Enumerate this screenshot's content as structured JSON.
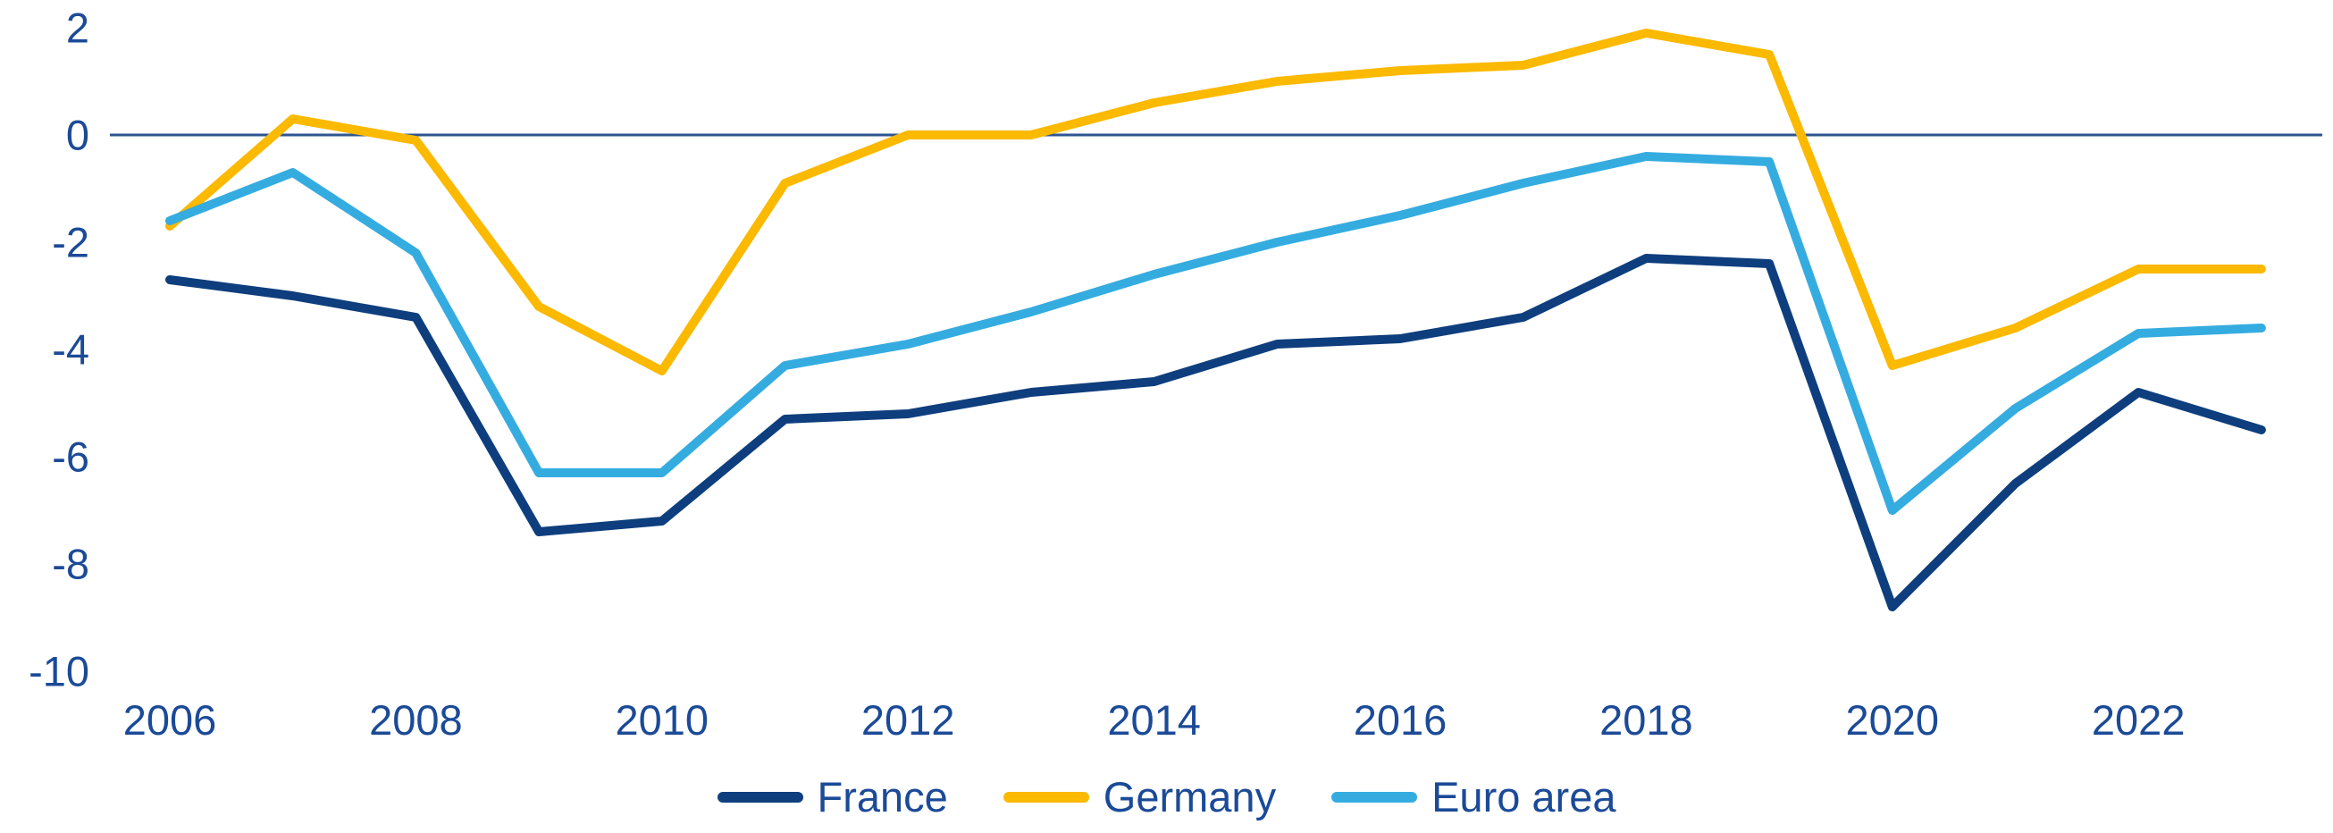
{
  "chart_data": {
    "type": "line",
    "title": "",
    "xlabel": "",
    "ylabel": "",
    "x": [
      2006,
      2007,
      2008,
      2009,
      2010,
      2011,
      2012,
      2013,
      2014,
      2015,
      2016,
      2017,
      2018,
      2019,
      2020,
      2021,
      2022,
      2023
    ],
    "x_ticks": [
      2006,
      2008,
      2010,
      2012,
      2014,
      2016,
      2018,
      2020,
      2022
    ],
    "y_ticks": [
      "2",
      "0",
      "-2",
      "-4",
      "-6",
      "-8",
      "-10"
    ],
    "y_tick_values": [
      2,
      0,
      -2,
      -4,
      -6,
      -8,
      -10
    ],
    "ylim": [
      -10.5,
      2.5
    ],
    "grid": false,
    "zero_baseline": true,
    "legend_position": "bottom",
    "axis_text_color": "#1B4A97",
    "zero_line_color": "#2F5591",
    "series": [
      {
        "name": "France",
        "color": "#0E3E7D",
        "values": [
          -2.7,
          -3.0,
          -3.4,
          -7.4,
          -7.2,
          -5.3,
          -5.2,
          -4.8,
          -4.6,
          -3.9,
          -3.8,
          -3.4,
          -2.3,
          -2.4,
          -8.8,
          -6.5,
          -4.8,
          -5.5
        ]
      },
      {
        "name": "Germany",
        "color": "#FBB900",
        "values": [
          -1.7,
          0.3,
          -0.1,
          -3.2,
          -4.4,
          -0.9,
          0.0,
          0.0,
          0.6,
          1.0,
          1.2,
          1.3,
          1.9,
          1.5,
          -4.3,
          -3.6,
          -2.5,
          -2.5
        ]
      },
      {
        "name": "Euro area",
        "color": "#35ACE0",
        "values": [
          -1.6,
          -0.7,
          -2.2,
          -6.3,
          -6.3,
          -4.3,
          -3.9,
          -3.3,
          -2.6,
          -2.0,
          -1.5,
          -0.9,
          -0.4,
          -0.5,
          -7.0,
          -5.1,
          -3.7,
          -3.6
        ]
      }
    ]
  }
}
